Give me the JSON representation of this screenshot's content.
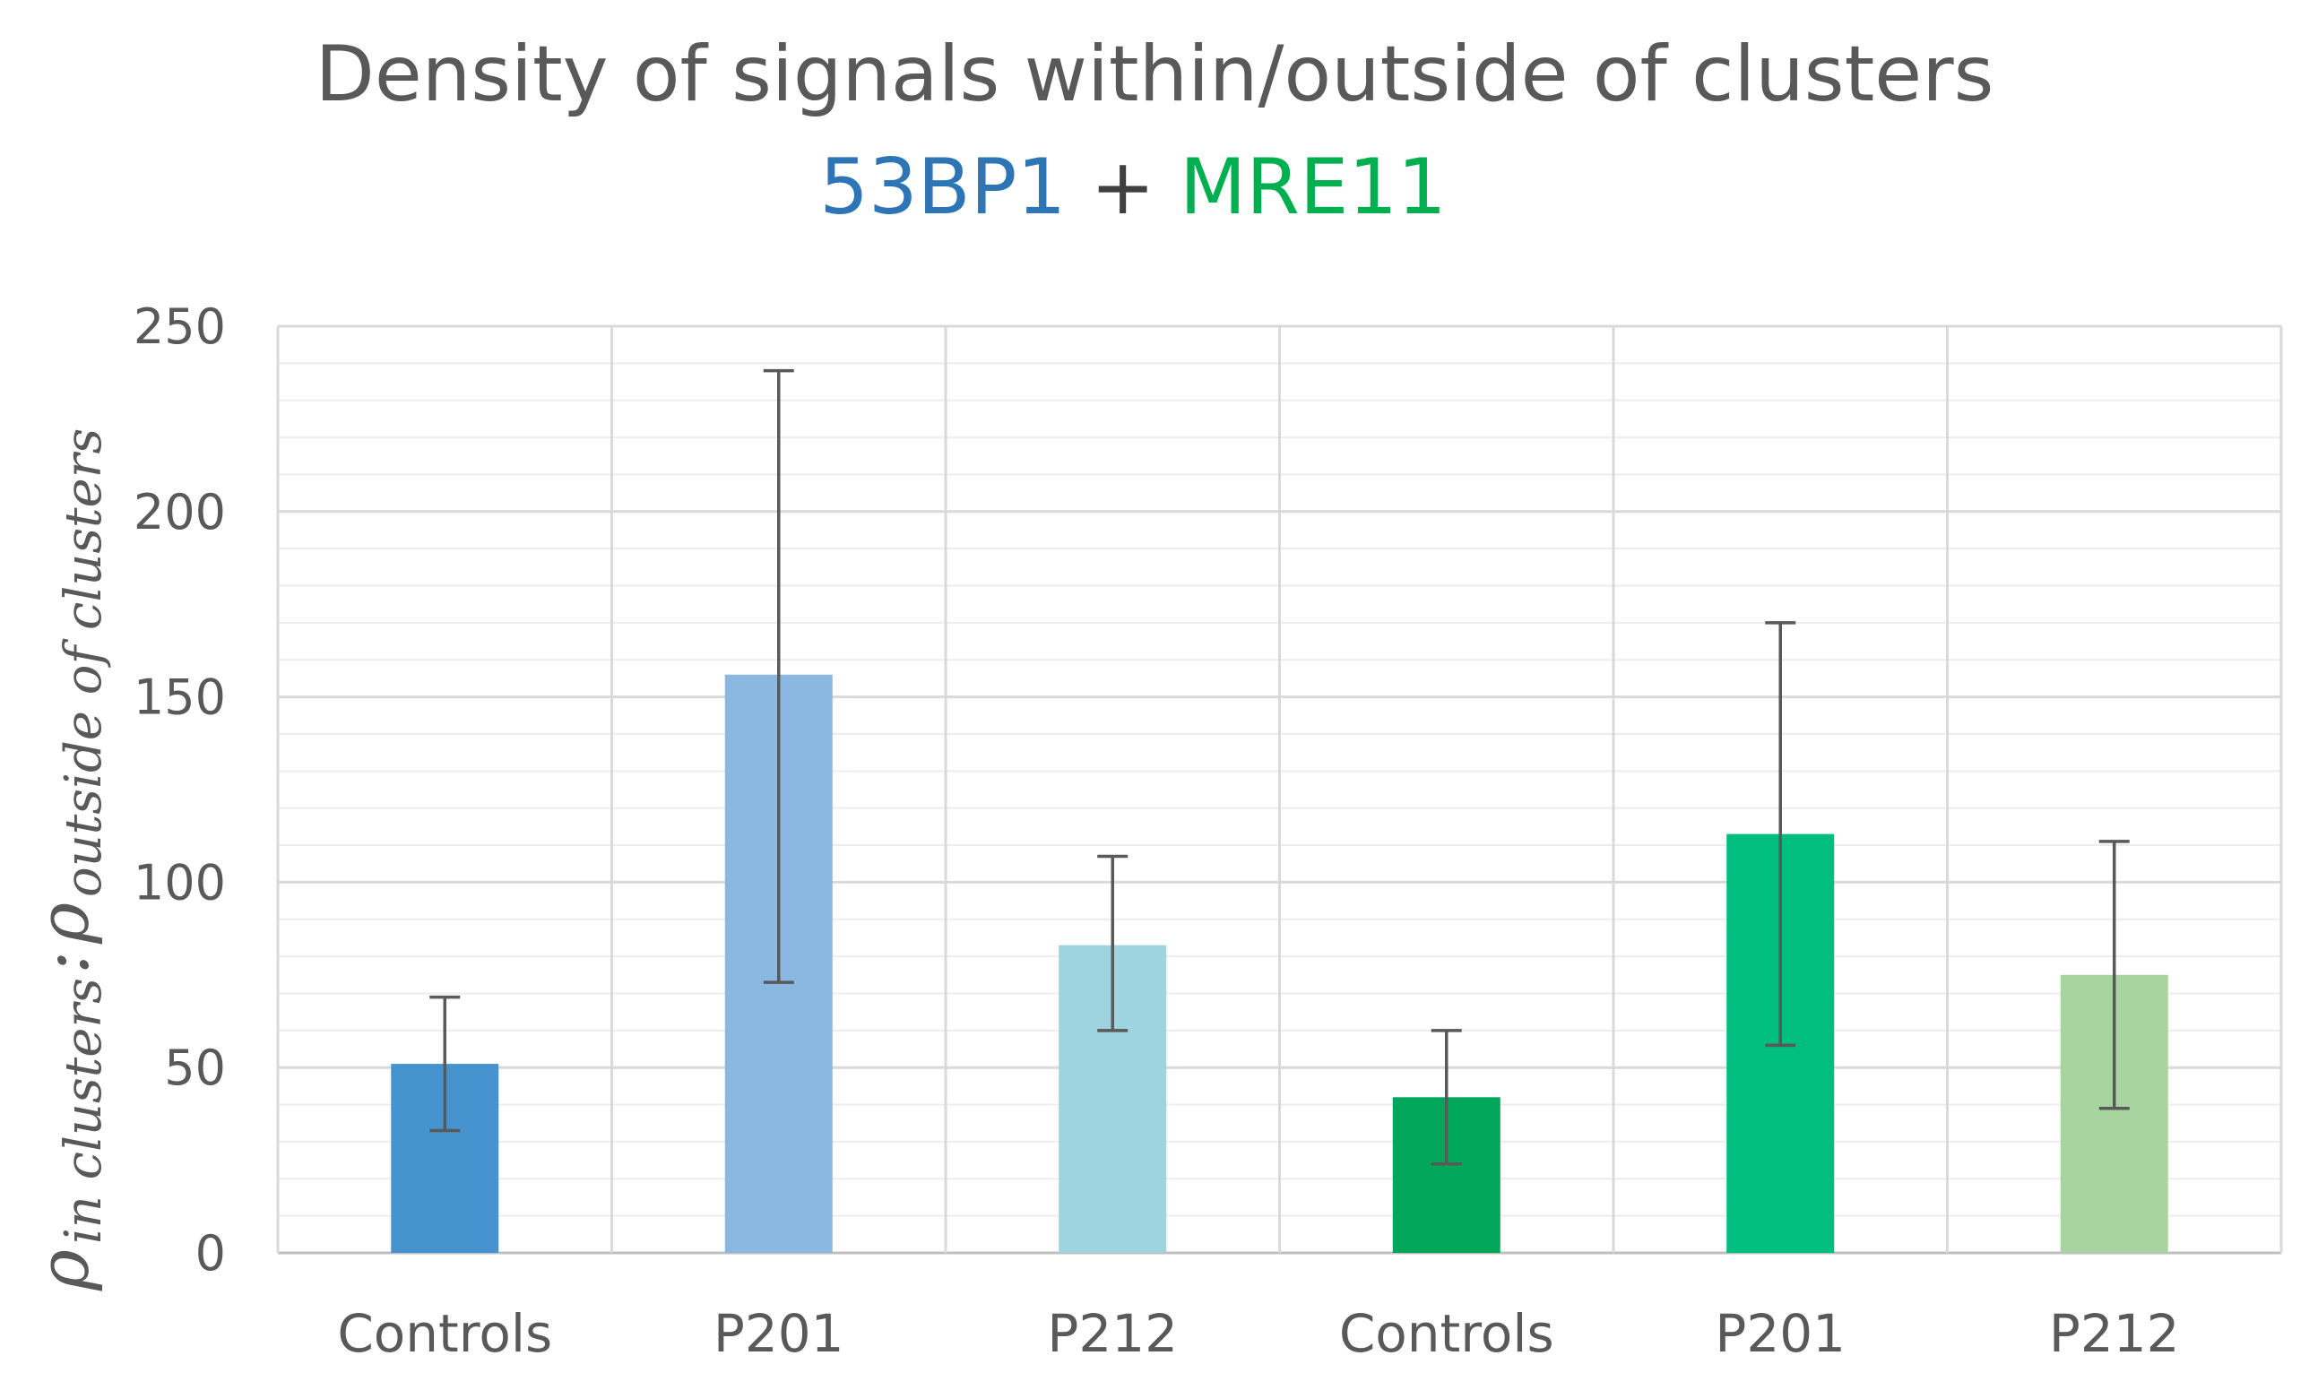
{
  "chart_data": {
    "type": "bar",
    "title": "Density of  signals within/outside of clusters",
    "subtitle": {
      "part1": {
        "text": "53BP1",
        "color": "#2E75B6"
      },
      "sep": {
        "text": " + ",
        "color": "#404040"
      },
      "part2": {
        "text": "MRE11",
        "color": "#00B050"
      }
    },
    "ylabel": {
      "rho": "ρ",
      "sub1": "in clusters",
      "colon": ":",
      "sub2": "outside of clusters"
    },
    "xlabel": "",
    "ylim": [
      0,
      250
    ],
    "yticks": [
      0,
      50,
      100,
      150,
      200,
      250
    ],
    "minor_grid_step": 10,
    "grid": true,
    "categories": [
      "Controls",
      "P201",
      "P212",
      "Controls",
      "P201",
      "P212"
    ],
    "values": [
      51,
      156,
      83,
      42,
      113,
      75
    ],
    "error_low": [
      33,
      73,
      60,
      24,
      56,
      39
    ],
    "error_high": [
      69,
      238,
      107,
      60,
      170,
      111
    ],
    "colors": [
      "#4594CF",
      "#8BB8E0",
      "#9DD4E0",
      "#00A65A",
      "#00BE7E",
      "#A8D4A0"
    ],
    "axis_color": "#BFBFBF",
    "grid_color": "#D9D9D9",
    "minor_grid_color": "#EDEDED",
    "errorbar_color": "#595959",
    "title_color": "#595959"
  }
}
